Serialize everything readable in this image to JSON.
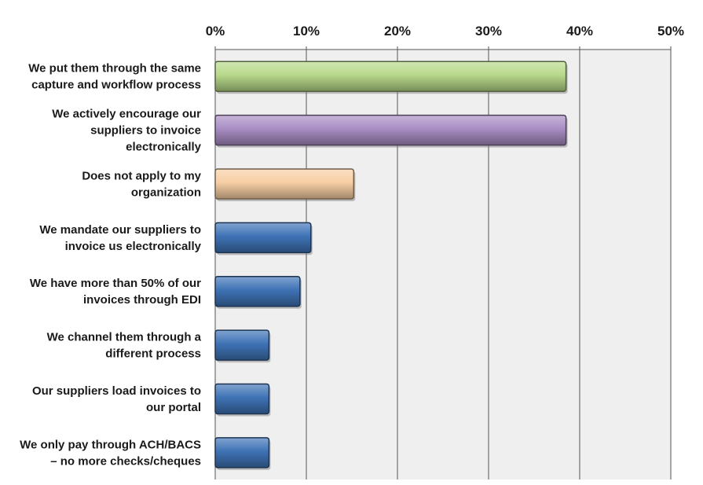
{
  "chart_data": {
    "type": "bar",
    "orientation": "horizontal",
    "title": "",
    "xlabel": "",
    "ylabel": "",
    "xlim": [
      0,
      50
    ],
    "xticks": [
      "0%",
      "10%",
      "20%",
      "30%",
      "40%",
      "50%"
    ],
    "axis_position": "top",
    "grid": true,
    "categories": [
      "We put them through the same|capture and workflow process",
      "We actively encourage our|suppliers to invoice|electronically",
      "Does not apply to my|organization",
      "We mandate our suppliers to|invoice us electronically",
      "We have more than 50% of our|invoices through EDI",
      "We channel them through a|different process",
      "Our suppliers load invoices to|our portal",
      "We only pay through ACH/BACS|– no more checks/cheques"
    ],
    "values": [
      38.5,
      38.5,
      15.2,
      10.5,
      9.3,
      5.9,
      5.9,
      5.9
    ],
    "colors": [
      "#b8d98a",
      "#a98ec4",
      "#f7cfa4",
      "#3f73b6",
      "#3f73b6",
      "#3f73b6",
      "#3f73b6",
      "#3f73b6"
    ]
  }
}
